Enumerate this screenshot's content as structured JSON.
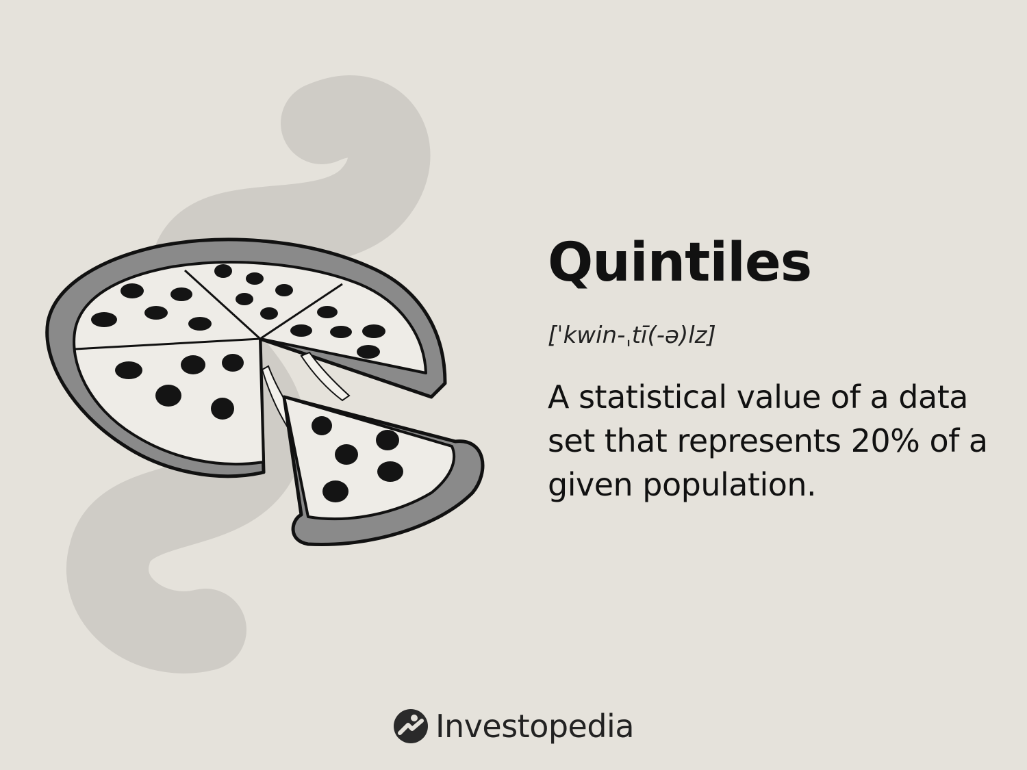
{
  "card": {
    "term": "Quintiles",
    "pronunciation": "[ˈkwin-ˌtī(-ə)lz]",
    "definition": "A statistical value of a data set that represents 20% of a given population."
  },
  "brand": {
    "name": "Investopedia",
    "logo_icon": "investopedia-logo-icon"
  },
  "illustration": {
    "subject": "pizza-icon",
    "colors": {
      "background": "#e5e2db",
      "swirl": "#cfccc6",
      "crust": "#8a8a8a",
      "cheese": "#eeece7",
      "pepperoni": "#141414"
    }
  }
}
